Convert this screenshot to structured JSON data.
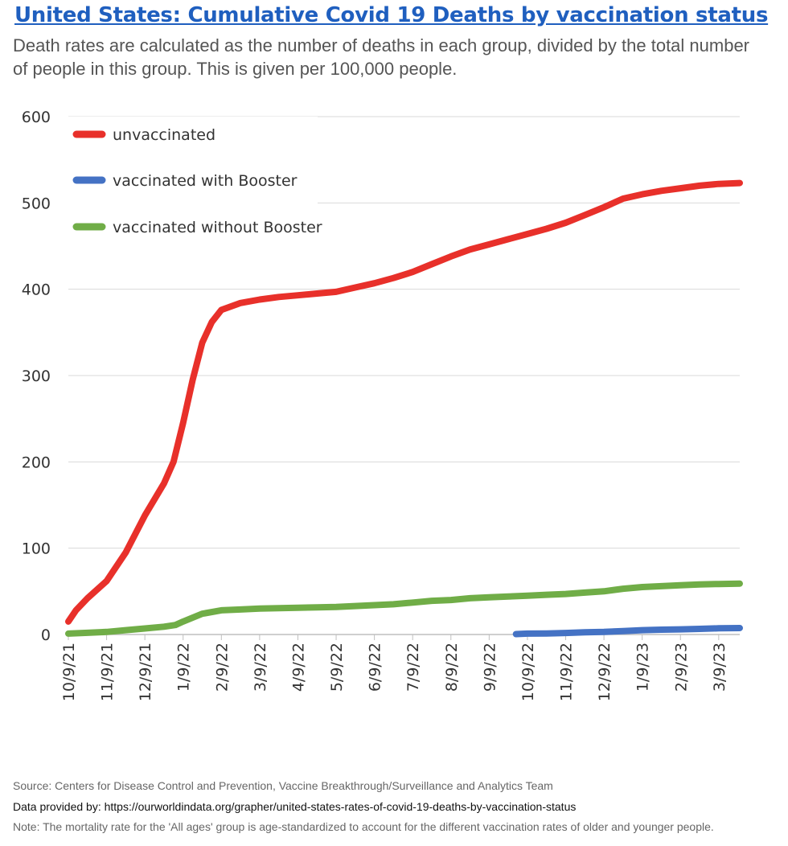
{
  "header": {
    "title": "United States: Cumulative Covid 19 Deaths by vaccination status",
    "subtitle": "Death rates are calculated as the number of deaths in each group, divided by the total number of people in this group. This is given per 100,000 people."
  },
  "footer": {
    "source": "Source: Centers for Disease Control and Prevention, Vaccine Breakthrough/Surveillance and Analytics Team",
    "provided": "Data provided by: https://ourworldindata.org/grapher/united-states-rates-of-covid-19-deaths-by-vaccination-status",
    "note": "Note: The mortality rate for the 'All ages' group is age-standardized to account for the different vaccination rates of older and younger people."
  },
  "chart_data": {
    "type": "line",
    "title": "United States: Cumulative Covid 19 Deaths by vaccination status",
    "xlabel": "",
    "ylabel": "",
    "ylim": [
      0,
      600
    ],
    "yticks": [
      0,
      100,
      200,
      300,
      400,
      500,
      600
    ],
    "xticks": [
      "10/9/21",
      "11/9/21",
      "12/9/21",
      "1/9/22",
      "2/9/22",
      "3/9/22",
      "4/9/22",
      "5/9/22",
      "6/9/22",
      "7/9/22",
      "8/9/22",
      "9/9/22",
      "10/9/22",
      "11/9/22",
      "12/9/22",
      "1/9/23",
      "2/9/23",
      "3/9/23"
    ],
    "x_unit": "months since 10/9/21",
    "x_range": [
      0,
      17.55
    ],
    "grid": true,
    "legend_position": "top-left",
    "series": [
      {
        "name": "unvaccinated",
        "color": "#e8302a",
        "points": [
          [
            0,
            15
          ],
          [
            0.2,
            28
          ],
          [
            0.5,
            42
          ],
          [
            1,
            62
          ],
          [
            1.5,
            95
          ],
          [
            2,
            138
          ],
          [
            2.5,
            175
          ],
          [
            2.75,
            200
          ],
          [
            3,
            245
          ],
          [
            3.25,
            295
          ],
          [
            3.5,
            338
          ],
          [
            3.75,
            362
          ],
          [
            4,
            376
          ],
          [
            4.5,
            384
          ],
          [
            5,
            388
          ],
          [
            5.5,
            391
          ],
          [
            6,
            393
          ],
          [
            6.5,
            395
          ],
          [
            7,
            397
          ],
          [
            7.5,
            402
          ],
          [
            8,
            407
          ],
          [
            8.5,
            413
          ],
          [
            9,
            420
          ],
          [
            9.5,
            429
          ],
          [
            10,
            438
          ],
          [
            10.5,
            446
          ],
          [
            11,
            452
          ],
          [
            11.5,
            458
          ],
          [
            12,
            464
          ],
          [
            12.5,
            470
          ],
          [
            13,
            477
          ],
          [
            13.5,
            486
          ],
          [
            14,
            495
          ],
          [
            14.5,
            505
          ],
          [
            15,
            510
          ],
          [
            15.5,
            514
          ],
          [
            16,
            517
          ],
          [
            16.5,
            520
          ],
          [
            17,
            522
          ],
          [
            17.55,
            523
          ]
        ]
      },
      {
        "name": "vaccinated with Booster",
        "color": "#4472c4",
        "points": [
          [
            11.7,
            0.5
          ],
          [
            12,
            1
          ],
          [
            12.5,
            1.2
          ],
          [
            13,
            1.8
          ],
          [
            13.5,
            2.5
          ],
          [
            14,
            3
          ],
          [
            14.5,
            4
          ],
          [
            15,
            5
          ],
          [
            15.5,
            5.6
          ],
          [
            16,
            6
          ],
          [
            16.5,
            6.5
          ],
          [
            17,
            7.2
          ],
          [
            17.55,
            7.5
          ]
        ]
      },
      {
        "name": "vaccinated without Booster",
        "color": "#70ad47",
        "points": [
          [
            0,
            1
          ],
          [
            0.5,
            2
          ],
          [
            1,
            3
          ],
          [
            1.5,
            5
          ],
          [
            2,
            7
          ],
          [
            2.5,
            9
          ],
          [
            2.8,
            11
          ],
          [
            3,
            15
          ],
          [
            3.5,
            24
          ],
          [
            4,
            28
          ],
          [
            4.5,
            29
          ],
          [
            5,
            30
          ],
          [
            5.5,
            30.5
          ],
          [
            6,
            31
          ],
          [
            6.5,
            31.5
          ],
          [
            7,
            32
          ],
          [
            7.5,
            33
          ],
          [
            8,
            34
          ],
          [
            8.5,
            35
          ],
          [
            9,
            37
          ],
          [
            9.5,
            39
          ],
          [
            10,
            40
          ],
          [
            10.5,
            42
          ],
          [
            11,
            43
          ],
          [
            11.5,
            44
          ],
          [
            12,
            45
          ],
          [
            12.5,
            46
          ],
          [
            13,
            47
          ],
          [
            13.5,
            48.5
          ],
          [
            14,
            50
          ],
          [
            14.5,
            53
          ],
          [
            15,
            55
          ],
          [
            15.5,
            56
          ],
          [
            16,
            57
          ],
          [
            16.5,
            58
          ],
          [
            17,
            58.5
          ],
          [
            17.55,
            59
          ]
        ]
      }
    ]
  }
}
